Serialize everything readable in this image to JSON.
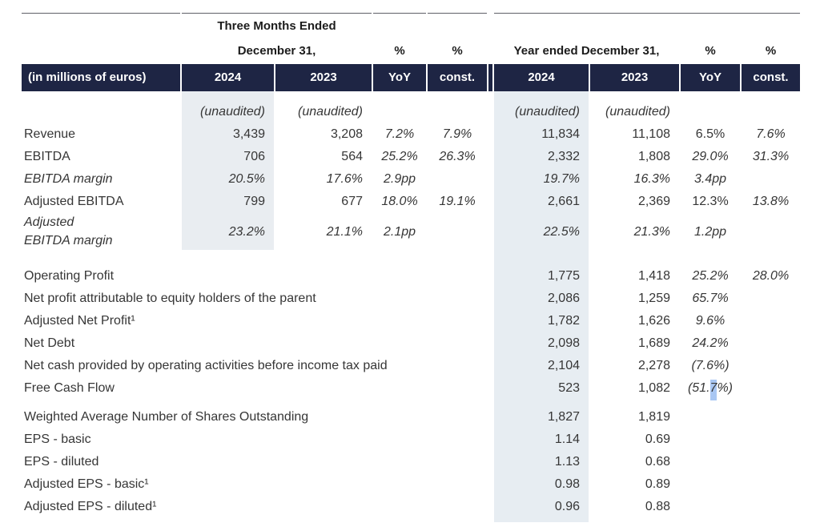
{
  "title": "Financial results table (in millions of euros)",
  "colors": {
    "header_bg": "#1e2544",
    "q_shade": "#e9edf1",
    "fy_shade": "#e7edf2",
    "selection": "#a9c7f3",
    "rule": "#5f6068",
    "text": "#363636"
  },
  "header": {
    "months_line1": "Three Months Ended",
    "months_line2": "December 31,",
    "year_line": "Year ended December 31,",
    "pct_q_yoy": "%",
    "pct_q_const": "%",
    "pct_fy_yoy": "%",
    "pct_fy_const": "%"
  },
  "columns": {
    "label": "(in millions of euros)",
    "q_2024": "2024",
    "q_2023": "2023",
    "q_yoy": "YoY",
    "q_const": "const.",
    "fy_2024": "2024",
    "fy_2023": "2023",
    "fy_yoy": "YoY",
    "fy_const": "const."
  },
  "rows": [
    {
      "type": "spacer",
      "height": 12,
      "q_shaded": true
    },
    {
      "label": "",
      "label_italic": false,
      "span_label": false,
      "q_shaded": true,
      "cells": [
        "(unaudited)",
        "(unaudited)",
        "",
        "",
        "(unaudited)",
        "(unaudited)",
        "",
        ""
      ],
      "italics": [
        true,
        true,
        false,
        false,
        true,
        true,
        false,
        false
      ]
    },
    {
      "label": "Revenue",
      "label_italic": false,
      "span_label": false,
      "q_shaded": true,
      "cells": [
        "3,439",
        "3,208",
        "7.2%",
        "7.9%",
        "11,834",
        "11,108",
        "6.5%",
        "7.6%"
      ],
      "italics": [
        false,
        false,
        true,
        true,
        false,
        false,
        false,
        true
      ]
    },
    {
      "label": "EBITDA",
      "label_italic": false,
      "span_label": false,
      "q_shaded": true,
      "cells": [
        "706",
        "564",
        "25.2%",
        "26.3%",
        "2,332",
        "1,808",
        "29.0%",
        "31.3%"
      ],
      "italics": [
        false,
        false,
        true,
        true,
        false,
        false,
        true,
        true
      ]
    },
    {
      "label": "EBITDA margin",
      "label_italic": true,
      "span_label": false,
      "q_shaded": true,
      "cells": [
        "20.5%",
        "17.6%",
        "2.9pp",
        "",
        "19.7%",
        "16.3%",
        "3.4pp",
        ""
      ],
      "italics": [
        true,
        true,
        true,
        false,
        true,
        true,
        true,
        false
      ]
    },
    {
      "label": "Adjusted EBITDA",
      "label_italic": false,
      "span_label": false,
      "q_shaded": true,
      "cells": [
        "799",
        "677",
        "18.0%",
        "19.1%",
        "2,661",
        "2,369",
        "12.3%",
        "13.8%"
      ],
      "italics": [
        false,
        false,
        true,
        true,
        false,
        false,
        false,
        true
      ]
    },
    {
      "label": "Adjusted\nEBITDA margin",
      "label_italic": true,
      "span_label": false,
      "q_shaded": true,
      "cells": [
        "23.2%",
        "21.1%",
        "2.1pp",
        "",
        "22.5%",
        "21.3%",
        "1.2pp",
        ""
      ],
      "italics": [
        true,
        true,
        true,
        false,
        true,
        true,
        true,
        false
      ]
    },
    {
      "type": "spacer",
      "height": 18,
      "q_shaded": false
    },
    {
      "label": "Operating Profit",
      "label_italic": false,
      "span_label": true,
      "q_shaded": false,
      "cells": [
        "",
        "",
        "",
        "",
        "1,775",
        "1,418",
        "25.2%",
        "28.0%"
      ],
      "italics": [
        false,
        false,
        false,
        false,
        false,
        false,
        true,
        true
      ]
    },
    {
      "label": "Net profit attributable to equity holders of the parent",
      "label_italic": false,
      "span_label": true,
      "q_shaded": false,
      "cells": [
        "",
        "",
        "",
        "",
        "2,086",
        "1,259",
        "65.7%",
        ""
      ],
      "italics": [
        false,
        false,
        false,
        false,
        false,
        false,
        true,
        false
      ]
    },
    {
      "label": "Adjusted Net Profit¹",
      "label_italic": false,
      "span_label": true,
      "q_shaded": false,
      "cells": [
        "",
        "",
        "",
        "",
        "1,782",
        "1,626",
        "9.6%",
        ""
      ],
      "italics": [
        false,
        false,
        false,
        false,
        false,
        false,
        true,
        false
      ]
    },
    {
      "label": "Net Debt",
      "label_italic": false,
      "span_label": true,
      "q_shaded": false,
      "cells": [
        "",
        "",
        "",
        "",
        "2,098",
        "1,689",
        "24.2%",
        ""
      ],
      "italics": [
        false,
        false,
        false,
        false,
        false,
        false,
        true,
        false
      ]
    },
    {
      "label": "Net cash provided by operating activities before income tax paid",
      "label_italic": false,
      "span_label": true,
      "q_shaded": false,
      "cells": [
        "",
        "",
        "",
        "",
        "2,104",
        "2,278",
        "(7.6%)",
        ""
      ],
      "italics": [
        false,
        false,
        false,
        false,
        false,
        false,
        true,
        false
      ]
    },
    {
      "label": "Free Cash Flow",
      "label_italic": false,
      "span_label": true,
      "q_shaded": false,
      "cells": [
        "",
        "",
        "",
        "",
        "523",
        "1,082",
        {
          "pre": "(51.",
          "sel": "7",
          "post": "%)"
        },
        ""
      ],
      "italics": [
        false,
        false,
        false,
        false,
        false,
        false,
        true,
        false
      ]
    },
    {
      "type": "spacer",
      "height": 8,
      "q_shaded": false
    },
    {
      "label": "Weighted Average Number of Shares Outstanding",
      "label_italic": false,
      "span_label": true,
      "q_shaded": false,
      "cells": [
        "",
        "",
        "",
        "",
        "1,827",
        "1,819",
        "",
        ""
      ],
      "italics": [
        false,
        false,
        false,
        false,
        false,
        false,
        false,
        false
      ]
    },
    {
      "label": "EPS - basic",
      "label_italic": false,
      "span_label": true,
      "q_shaded": false,
      "cells": [
        "",
        "",
        "",
        "",
        "1.14",
        "0.69",
        "",
        ""
      ],
      "italics": [
        false,
        false,
        false,
        false,
        false,
        false,
        false,
        false
      ]
    },
    {
      "label": "EPS - diluted",
      "label_italic": false,
      "span_label": true,
      "q_shaded": false,
      "cells": [
        "",
        "",
        "",
        "",
        "1.13",
        "0.68",
        "",
        ""
      ],
      "italics": [
        false,
        false,
        false,
        false,
        false,
        false,
        false,
        false
      ]
    },
    {
      "label": "Adjusted EPS - basic¹",
      "label_italic": false,
      "span_label": true,
      "q_shaded": false,
      "cells": [
        "",
        "",
        "",
        "",
        "0.98",
        "0.89",
        "",
        ""
      ],
      "italics": [
        false,
        false,
        false,
        false,
        false,
        false,
        false,
        false
      ]
    },
    {
      "label": "Adjusted EPS - diluted¹",
      "label_italic": false,
      "span_label": true,
      "q_shaded": false,
      "cells": [
        "",
        "",
        "",
        "",
        "0.96",
        "0.88",
        "",
        ""
      ],
      "italics": [
        false,
        false,
        false,
        false,
        false,
        false,
        false,
        false
      ]
    },
    {
      "type": "spacer",
      "height": 6,
      "q_shaded": false
    }
  ]
}
